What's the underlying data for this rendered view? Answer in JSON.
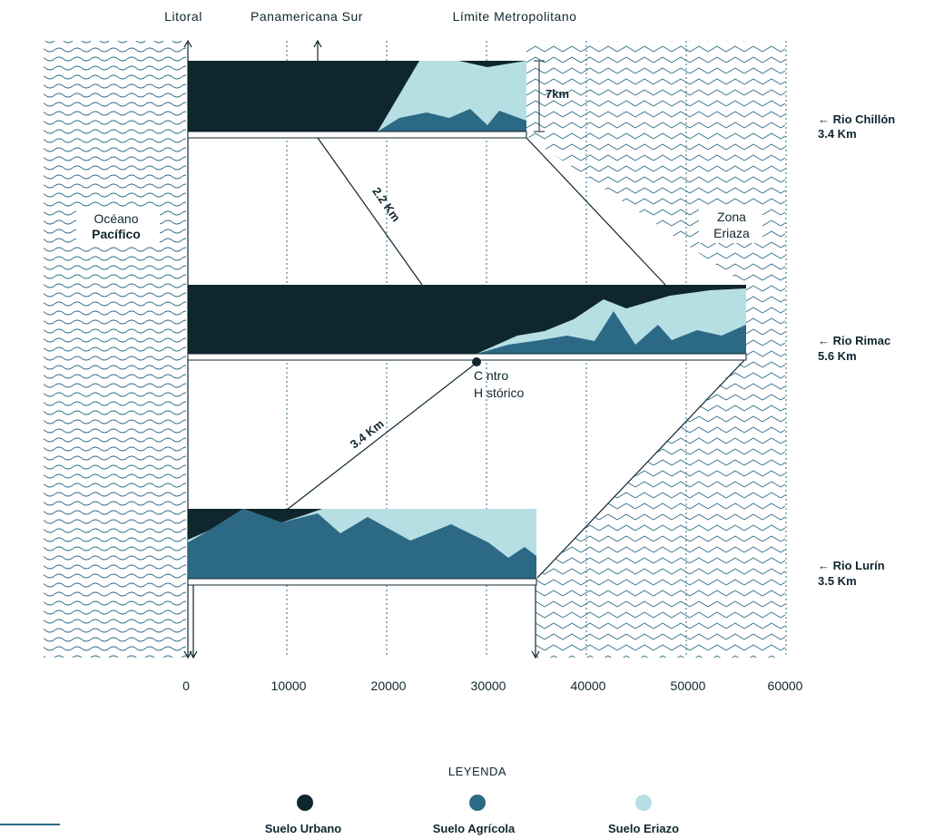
{
  "colors": {
    "urbano": "#10262f",
    "agricola": "#2c6985",
    "eriazo": "#b6dfe4",
    "ocean_line": "#2c6985",
    "grid": "#2c6985",
    "text": "#10262f"
  },
  "top_labels": {
    "litoral": "Litoral",
    "panamericana": "Panamericana Sur",
    "limite": "Límite Metropolitano"
  },
  "regions": {
    "ocean_line1": "Océano",
    "ocean_line2": "Pacífico",
    "eriaza_line1": "Zona",
    "eriaza_line2": "Eriaza"
  },
  "rivers": [
    {
      "name": "← Rio Chillón",
      "length": "3.4 Km"
    },
    {
      "name": "← Rio Rimac",
      "length": "5.6 Km"
    },
    {
      "name": "← Rio Lurín",
      "length": "3.5 Km"
    }
  ],
  "annotations": {
    "width_7km": "7km",
    "dist_22": "2.2 Km",
    "dist_34": "3.4 Km",
    "centro_line1": "C ntro",
    "centro_line2": "H stórico"
  },
  "axis": {
    "ticks": [
      "0",
      "10000",
      "20000",
      "30000",
      "40000",
      "50000",
      "60000"
    ]
  },
  "legend": {
    "title": "LEYENDA",
    "items": [
      {
        "label": "Suelo Urbano",
        "color": "#10262f"
      },
      {
        "label": "Suelo Agrícola",
        "color": "#2c6985"
      },
      {
        "label": "Suelo Eriazo",
        "color": "#b6dfe4"
      }
    ]
  }
}
